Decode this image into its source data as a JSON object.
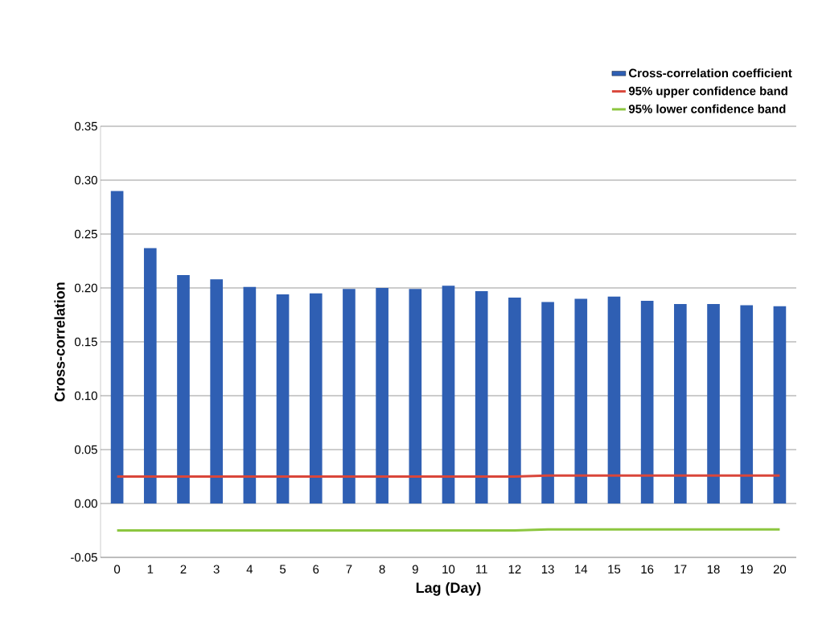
{
  "chart_data": {
    "type": "bar",
    "xlabel": "Lag (Day)",
    "ylabel": "Cross-correlation",
    "categories": [
      "0",
      "1",
      "2",
      "3",
      "4",
      "5",
      "6",
      "7",
      "8",
      "9",
      "10",
      "11",
      "12",
      "13",
      "14",
      "15",
      "16",
      "17",
      "18",
      "19",
      "20"
    ],
    "series": [
      {
        "name": "Cross-correlation coefficient",
        "color": "#2f5fb3",
        "values": [
          0.29,
          0.237,
          0.212,
          0.208,
          0.201,
          0.194,
          0.195,
          0.199,
          0.2,
          0.199,
          0.202,
          0.197,
          0.191,
          0.187,
          0.19,
          0.192,
          0.188,
          0.185,
          0.185,
          0.184,
          0.183
        ]
      },
      {
        "name": "95% upper confidence band",
        "type": "line",
        "color": "#d9463a",
        "values": [
          0.025,
          0.025,
          0.025,
          0.025,
          0.025,
          0.025,
          0.025,
          0.025,
          0.025,
          0.025,
          0.025,
          0.025,
          0.025,
          0.026,
          0.026,
          0.026,
          0.026,
          0.026,
          0.026,
          0.026,
          0.026
        ]
      },
      {
        "name": "95% lower confidence band",
        "type": "line",
        "color": "#8cc63f",
        "values": [
          -0.025,
          -0.025,
          -0.025,
          -0.025,
          -0.025,
          -0.025,
          -0.025,
          -0.025,
          -0.025,
          -0.025,
          -0.025,
          -0.025,
          -0.025,
          -0.024,
          -0.024,
          -0.024,
          -0.024,
          -0.024,
          -0.024,
          -0.024,
          -0.024
        ]
      }
    ],
    "ylim": [
      -0.05,
      0.35
    ],
    "yticks": [
      {
        "value": -0.05,
        "label": "-0.05"
      },
      {
        "value": 0,
        "label": "0.00"
      },
      {
        "value": 0.05,
        "label": "0.05"
      },
      {
        "value": 0.1,
        "label": "0.10"
      },
      {
        "value": 0.15,
        "label": "0.15"
      },
      {
        "value": 0.2,
        "label": "0.20"
      },
      {
        "value": 0.25,
        "label": "0.25"
      },
      {
        "value": 0.3,
        "label": "0.30"
      },
      {
        "value": 0.35,
        "label": "0.35"
      }
    ],
    "grid": "y",
    "legend": "top right",
    "marker": "none",
    "line_style": "solid"
  }
}
